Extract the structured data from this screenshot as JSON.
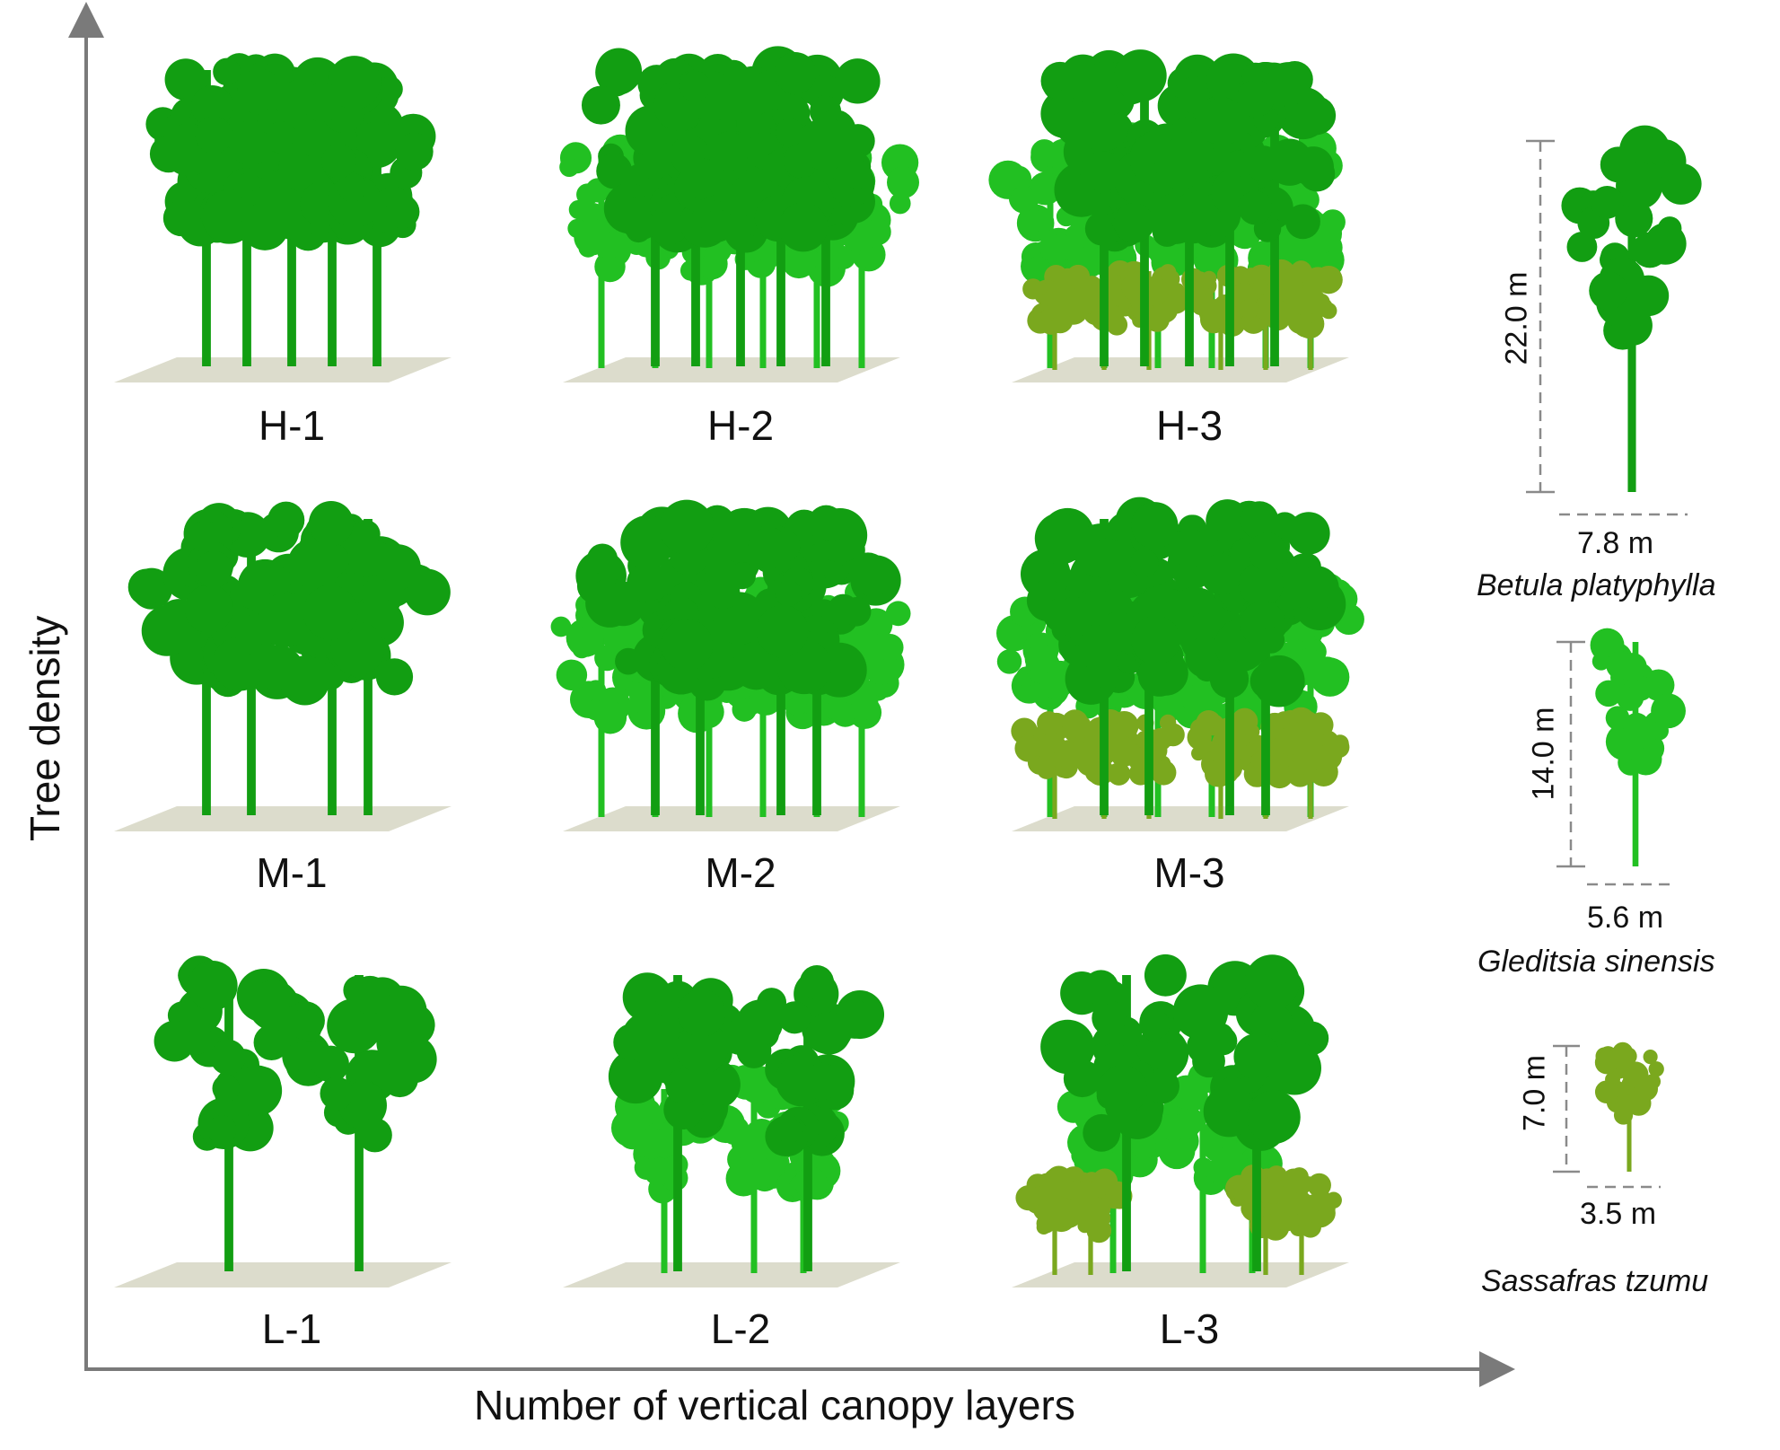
{
  "axes": {
    "x_title": "Number of vertical canopy layers",
    "y_title": "Tree density",
    "axis_color": "#7a7a7a"
  },
  "plots": [
    {
      "label": "H-1",
      "density": "H",
      "layers": 1
    },
    {
      "label": "H-2",
      "density": "H",
      "layers": 2
    },
    {
      "label": "H-3",
      "density": "H",
      "layers": 3
    },
    {
      "label": "M-1",
      "density": "M",
      "layers": 1
    },
    {
      "label": "M-2",
      "density": "M",
      "layers": 2
    },
    {
      "label": "M-3",
      "density": "M",
      "layers": 3
    },
    {
      "label": "L-1",
      "density": "L",
      "layers": 1
    },
    {
      "label": "L-2",
      "density": "L",
      "layers": 2
    },
    {
      "label": "L-3",
      "density": "L",
      "layers": 3
    }
  ],
  "species": [
    {
      "name": "Betula platyphylla",
      "height": "22.0 m",
      "width": "7.8 m",
      "color": "#129e12"
    },
    {
      "name": "Gleditsia sinensis",
      "height": "14.0 m",
      "width": "5.6 m",
      "color": "#22c022"
    },
    {
      "name": "Sassafras tzumu",
      "height": "7.0 m",
      "width": "3.5 m",
      "color": "#7aa81e"
    }
  ],
  "colors": {
    "canopy_dark": "#129e12",
    "canopy_mid": "#22c022",
    "canopy_low": "#7aa81e",
    "ground": "#dcdccc"
  }
}
